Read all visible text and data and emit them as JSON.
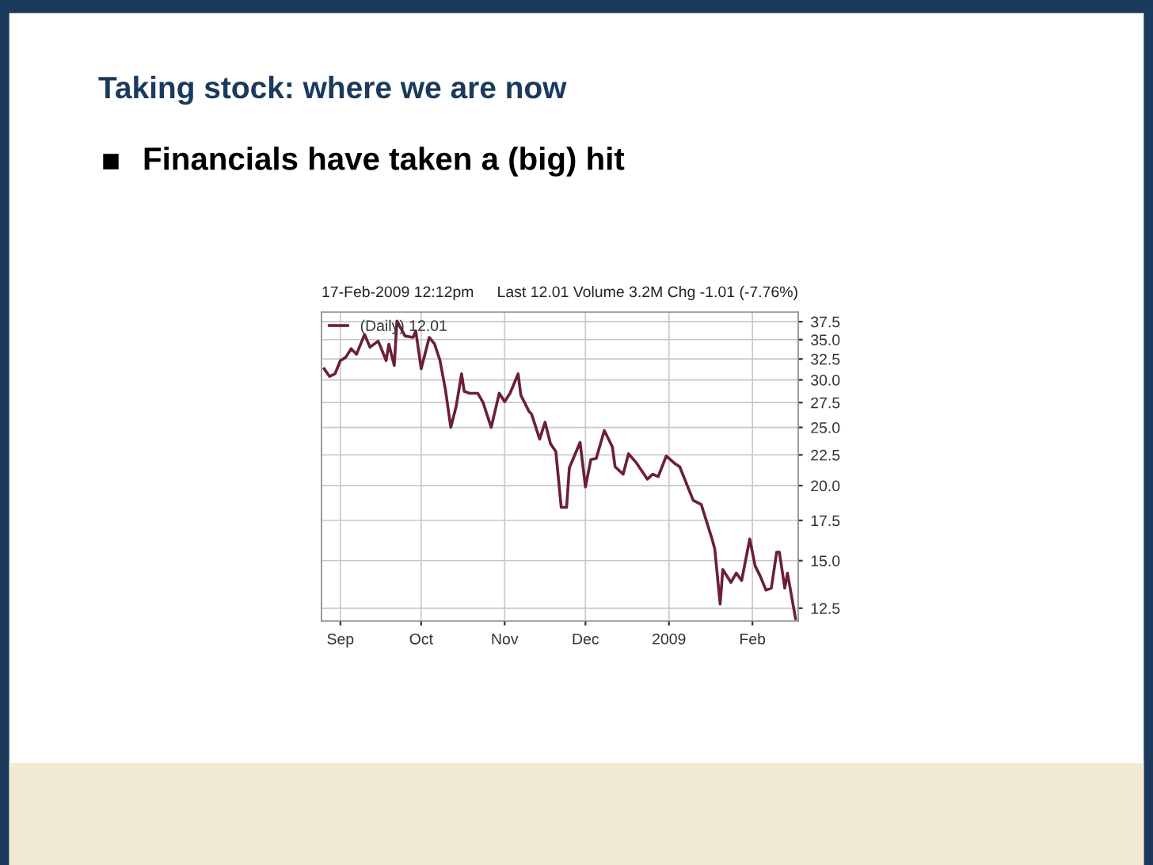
{
  "chart_data": {
    "type": "line",
    "title": "Taking stock: where we are now",
    "subtitle": "Financials have taken a (big) hit",
    "annotations": [
      "17-Feb-2009 12:12pm",
      "Last 12.01 Volume 3.2M Chg -1.01 (-7.76%)"
    ],
    "x": [
      "2008-08-26",
      "2008-08-28",
      "2008-08-30",
      "2008-09-01",
      "2008-09-03",
      "2008-09-05",
      "2008-09-07",
      "2008-09-10",
      "2008-09-12",
      "2008-09-15",
      "2008-09-16",
      "2008-09-18",
      "2008-09-19",
      "2008-09-21",
      "2008-09-22",
      "2008-09-25",
      "2008-09-28",
      "2008-09-29",
      "2008-10-01",
      "2008-10-04",
      "2008-10-06",
      "2008-10-08",
      "2008-10-10",
      "2008-10-12",
      "2008-10-14",
      "2008-10-16",
      "2008-10-17",
      "2008-10-19",
      "2008-10-22",
      "2008-10-24",
      "2008-10-27",
      "2008-10-30",
      "2008-11-01",
      "2008-11-03",
      "2008-11-06",
      "2008-11-07",
      "2008-11-10",
      "2008-11-11",
      "2008-11-14",
      "2008-11-16",
      "2008-11-18",
      "2008-11-20",
      "2008-11-22",
      "2008-11-24",
      "2008-11-25",
      "2008-11-29",
      "2008-12-01",
      "2008-12-03",
      "2008-12-05",
      "2008-12-08",
      "2008-12-11",
      "2008-12-12",
      "2008-12-15",
      "2008-12-17",
      "2008-12-20",
      "2008-12-24",
      "2008-12-26",
      "2008-12-28",
      "2008-12-31",
      "2009-01-03",
      "2009-01-05",
      "2009-01-10",
      "2009-01-13",
      "2009-01-17",
      "2009-01-18",
      "2009-01-20",
      "2009-01-21",
      "2009-01-24",
      "2009-01-26",
      "2009-01-28",
      "2009-01-31",
      "2009-02-02",
      "2009-02-04",
      "2009-02-06",
      "2009-02-08",
      "2009-02-10",
      "2009-02-11",
      "2009-02-13",
      "2009-02-14",
      "2009-02-15",
      "2009-02-17"
    ],
    "series": [
      {
        "name": "(Daily) 12.01",
        "color": "#6b1f3a",
        "values": [
          31.3,
          30.4,
          30.7,
          32.3,
          32.7,
          33.8,
          33.1,
          35.7,
          34.0,
          34.8,
          34.0,
          32.3,
          34.4,
          31.7,
          37.6,
          35.5,
          35.3,
          36.2,
          31.3,
          35.3,
          34.4,
          32.3,
          28.9,
          25.0,
          27.1,
          30.7,
          28.7,
          28.5,
          28.5,
          27.5,
          25.0,
          28.5,
          27.6,
          28.5,
          30.7,
          28.3,
          26.6,
          26.3,
          23.9,
          25.5,
          23.5,
          22.8,
          18.4,
          18.4,
          21.4,
          23.6,
          19.9,
          22.1,
          22.2,
          24.7,
          23.2,
          21.5,
          20.9,
          22.6,
          21.8,
          20.5,
          20.9,
          20.7,
          22.4,
          21.8,
          21.5,
          18.9,
          18.6,
          16.3,
          15.7,
          12.7,
          14.5,
          13.8,
          14.3,
          13.9,
          16.3,
          14.7,
          14.1,
          13.4,
          13.5,
          15.5,
          15.5,
          13.5,
          14.3,
          13.5,
          12.01
        ]
      }
    ],
    "log": "y",
    "xlim": [
      "2008-08-25",
      "2009-02-18"
    ],
    "xticks": [
      {
        "value": "2008-09-01",
        "label": "Sep"
      },
      {
        "value": "2008-10-01",
        "label": "Oct"
      },
      {
        "value": "2008-11-01",
        "label": "Nov"
      },
      {
        "value": "2008-12-01",
        "label": "Dec"
      },
      {
        "value": "2009-01-01",
        "label": "2009"
      },
      {
        "value": "2009-02-01",
        "label": "Feb"
      }
    ],
    "ylim": [
      11.9,
      38.9
    ],
    "yticks": [
      {
        "value": 12.5,
        "label": "12.5"
      },
      {
        "value": 15,
        "label": "15.0"
      },
      {
        "value": 17.5,
        "label": "17.5"
      },
      {
        "value": 20,
        "label": "20.0"
      },
      {
        "value": 22.5,
        "label": "22.5"
      },
      {
        "value": 25,
        "label": "25.0"
      },
      {
        "value": 27.5,
        "label": "27.5"
      },
      {
        "value": 30,
        "label": "30.0"
      },
      {
        "value": 32.5,
        "label": "32.5"
      },
      {
        "value": 35,
        "label": "35.0"
      },
      {
        "value": 37.5,
        "label": "37.5"
      }
    ],
    "grid": true,
    "legend": "top left",
    "marker": "none",
    "line_style": "solid"
  }
}
